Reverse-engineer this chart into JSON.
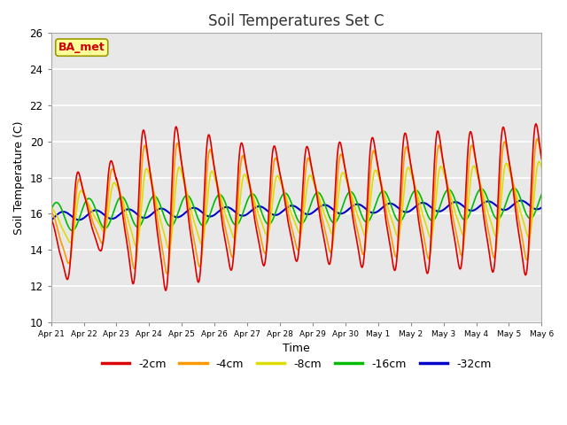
{
  "title": "Soil Temperatures Set C",
  "xlabel": "Time",
  "ylabel": "Soil Temperature (C)",
  "ylim": [
    10,
    26
  ],
  "xlim": [
    0,
    15
  ],
  "background_color": "#e8e8e8",
  "figure_color": "#ffffff",
  "grid_color": "#ffffff",
  "label_box": "BA_met",
  "label_box_bg": "#ffff99",
  "label_box_border": "#999900",
  "label_box_text_color": "#cc0000",
  "xtick_labels": [
    "Apr 21",
    "Apr 22",
    "Apr 23",
    "Apr 24",
    "Apr 25",
    "Apr 26",
    "Apr 27",
    "Apr 28",
    "Apr 29",
    "Apr 30",
    "May 1",
    "May 2",
    "May 3",
    "May 4",
    "May 5",
    "May 6"
  ],
  "series_labels": [
    "-2cm",
    "-4cm",
    "-8cm",
    "-16cm",
    "-32cm"
  ],
  "series_colors": [
    "#dd0000",
    "#ff9900",
    "#dddd00",
    "#00bb00",
    "#0000cc"
  ],
  "series_linewidths": [
    1.2,
    1.2,
    1.2,
    1.2,
    1.5
  ]
}
